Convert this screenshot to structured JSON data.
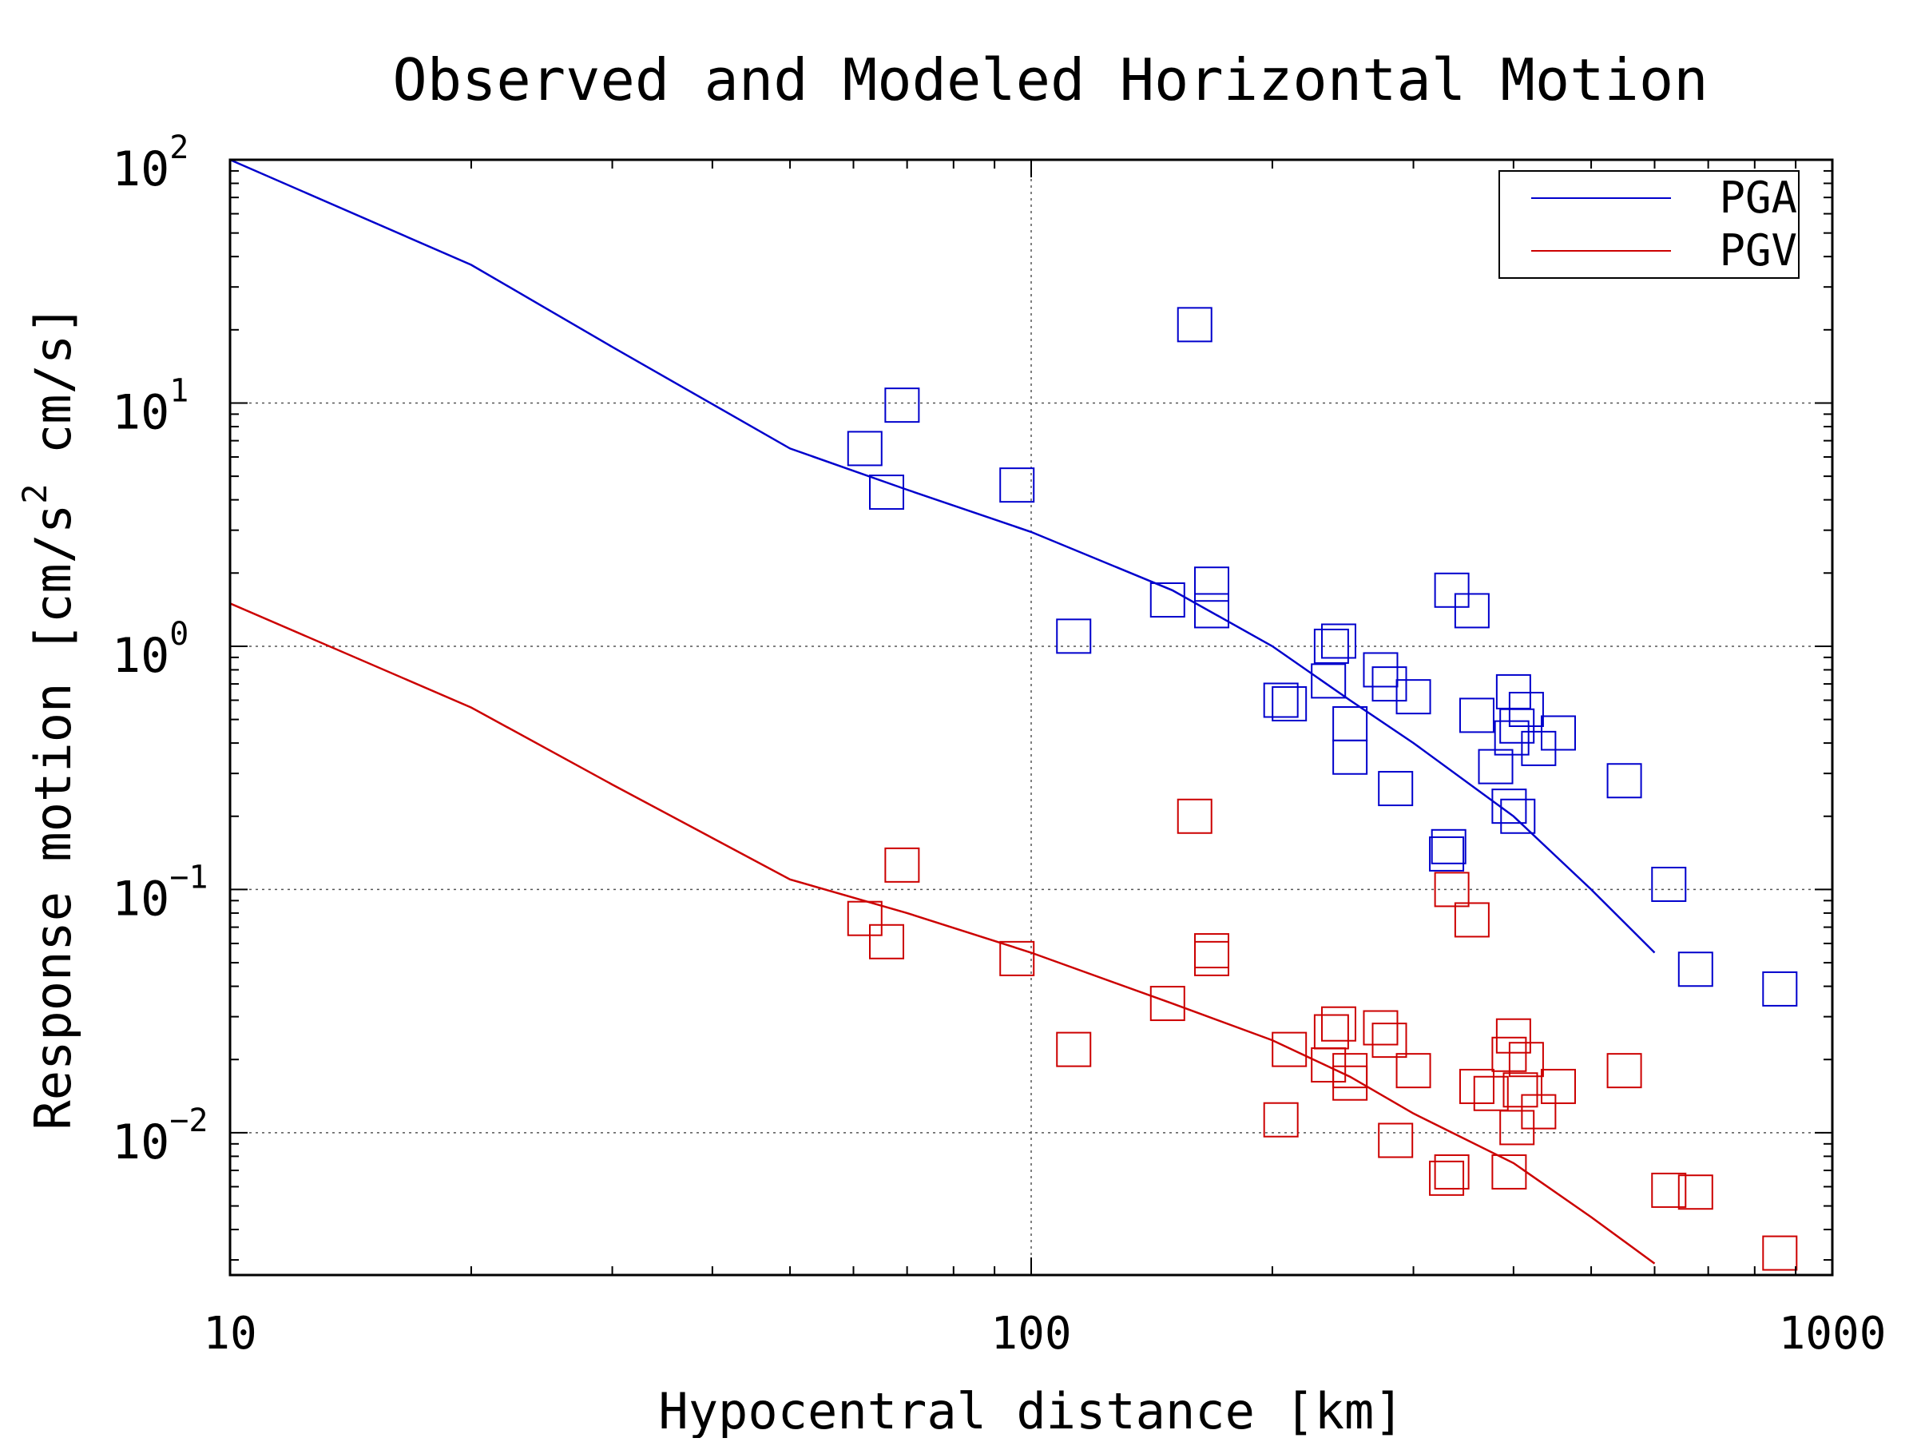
{
  "chart_data": {
    "type": "scatter",
    "title": "Observed and Modeled Horizontal Motion",
    "xlabel": "Hypocentral distance [km]",
    "ylabel": {
      "prefix": "Response motion [cm/s",
      "superscript": "2",
      "suffix": "  cm/s]"
    },
    "xscale": "log",
    "yscale": "log",
    "xlim": [
      10,
      1000
    ],
    "ylim": [
      0.0026,
      100
    ],
    "grid": true,
    "legend_position": "top-right",
    "x_ticks": [
      {
        "value": 10,
        "label": "10"
      },
      {
        "value": 100,
        "label": "100"
      },
      {
        "value": 1000,
        "label": "1000"
      }
    ],
    "y_ticks": [
      {
        "value": 100,
        "base": "10",
        "exp": "2"
      },
      {
        "value": 10,
        "base": "10",
        "exp": "1"
      },
      {
        "value": 1,
        "base": "10",
        "exp": "0"
      },
      {
        "value": 0.1,
        "base": "10",
        "exp": "−1"
      },
      {
        "value": 0.01,
        "base": "10",
        "exp": "−2"
      }
    ],
    "lines": [
      {
        "name": "PGA",
        "color": "#0000cc",
        "x": [
          10,
          20,
          30,
          50,
          70,
          100,
          150,
          200,
          250,
          300,
          400,
          500,
          600
        ],
        "y": [
          100,
          37,
          17,
          6.5,
          4.4,
          2.95,
          1.7,
          1.0,
          0.6,
          0.4,
          0.2,
          0.1,
          0.055
        ]
      },
      {
        "name": "PGV",
        "color": "#cc0000",
        "x": [
          10,
          20,
          30,
          50,
          70,
          100,
          150,
          200,
          250,
          300,
          400,
          500,
          600
        ],
        "y": [
          1.5,
          0.56,
          0.27,
          0.11,
          0.08,
          0.055,
          0.034,
          0.024,
          0.017,
          0.012,
          0.0075,
          0.0045,
          0.0029
        ]
      }
    ],
    "scatter": [
      {
        "name": "PGA observed",
        "color": "#0000cc",
        "points": [
          [
            62,
            6.5
          ],
          [
            66,
            4.3
          ],
          [
            69,
            9.8
          ],
          [
            96,
            4.6
          ],
          [
            113,
            1.1
          ],
          [
            148,
            1.55
          ],
          [
            160,
            21
          ],
          [
            168,
            1.8
          ],
          [
            168,
            1.4
          ],
          [
            205,
            0.6
          ],
          [
            210,
            0.58
          ],
          [
            235,
            0.72
          ],
          [
            237,
            1.0
          ],
          [
            242,
            1.05
          ],
          [
            250,
            0.48
          ],
          [
            250,
            0.35
          ],
          [
            273,
            0.8
          ],
          [
            280,
            0.7
          ],
          [
            285,
            0.26
          ],
          [
            300,
            0.62
          ],
          [
            330,
            0.14
          ],
          [
            332,
            0.15
          ],
          [
            335,
            1.7
          ],
          [
            355,
            1.4
          ],
          [
            360,
            0.52
          ],
          [
            380,
            0.32
          ],
          [
            395,
            0.22
          ],
          [
            398,
            0.42
          ],
          [
            400,
            0.65
          ],
          [
            404,
            0.47
          ],
          [
            405,
            0.2
          ],
          [
            415,
            0.55
          ],
          [
            430,
            0.38
          ],
          [
            455,
            0.44
          ],
          [
            550,
            0.28
          ],
          [
            625,
            0.105
          ],
          [
            675,
            0.047
          ],
          [
            860,
            0.039
          ]
        ]
      },
      {
        "name": "PGV observed",
        "color": "#cc0000",
        "points": [
          [
            62,
            0.076
          ],
          [
            66,
            0.061
          ],
          [
            69,
            0.126
          ],
          [
            96,
            0.052
          ],
          [
            113,
            0.022
          ],
          [
            148,
            0.034
          ],
          [
            160,
            0.2
          ],
          [
            168,
            0.056
          ],
          [
            168,
            0.052
          ],
          [
            205,
            0.0113
          ],
          [
            210,
            0.022
          ],
          [
            235,
            0.019
          ],
          [
            237,
            0.026
          ],
          [
            242,
            0.028
          ],
          [
            250,
            0.018
          ],
          [
            250,
            0.016
          ],
          [
            273,
            0.027
          ],
          [
            280,
            0.024
          ],
          [
            285,
            0.0093
          ],
          [
            300,
            0.018
          ],
          [
            330,
            0.0065
          ],
          [
            335,
            0.0069
          ],
          [
            335,
            0.1
          ],
          [
            355,
            0.075
          ],
          [
            360,
            0.0155
          ],
          [
            375,
            0.0145
          ],
          [
            395,
            0.0069
          ],
          [
            395,
            0.021
          ],
          [
            400,
            0.025
          ],
          [
            404,
            0.0105
          ],
          [
            408,
            0.015
          ],
          [
            415,
            0.02
          ],
          [
            430,
            0.0122
          ],
          [
            455,
            0.0155
          ],
          [
            550,
            0.018
          ],
          [
            625,
            0.0058
          ],
          [
            675,
            0.0057
          ],
          [
            860,
            0.0032
          ]
        ]
      }
    ],
    "legend": [
      {
        "label": "PGA",
        "color": "#0000cc"
      },
      {
        "label": "PGV",
        "color": "#cc0000"
      }
    ]
  }
}
